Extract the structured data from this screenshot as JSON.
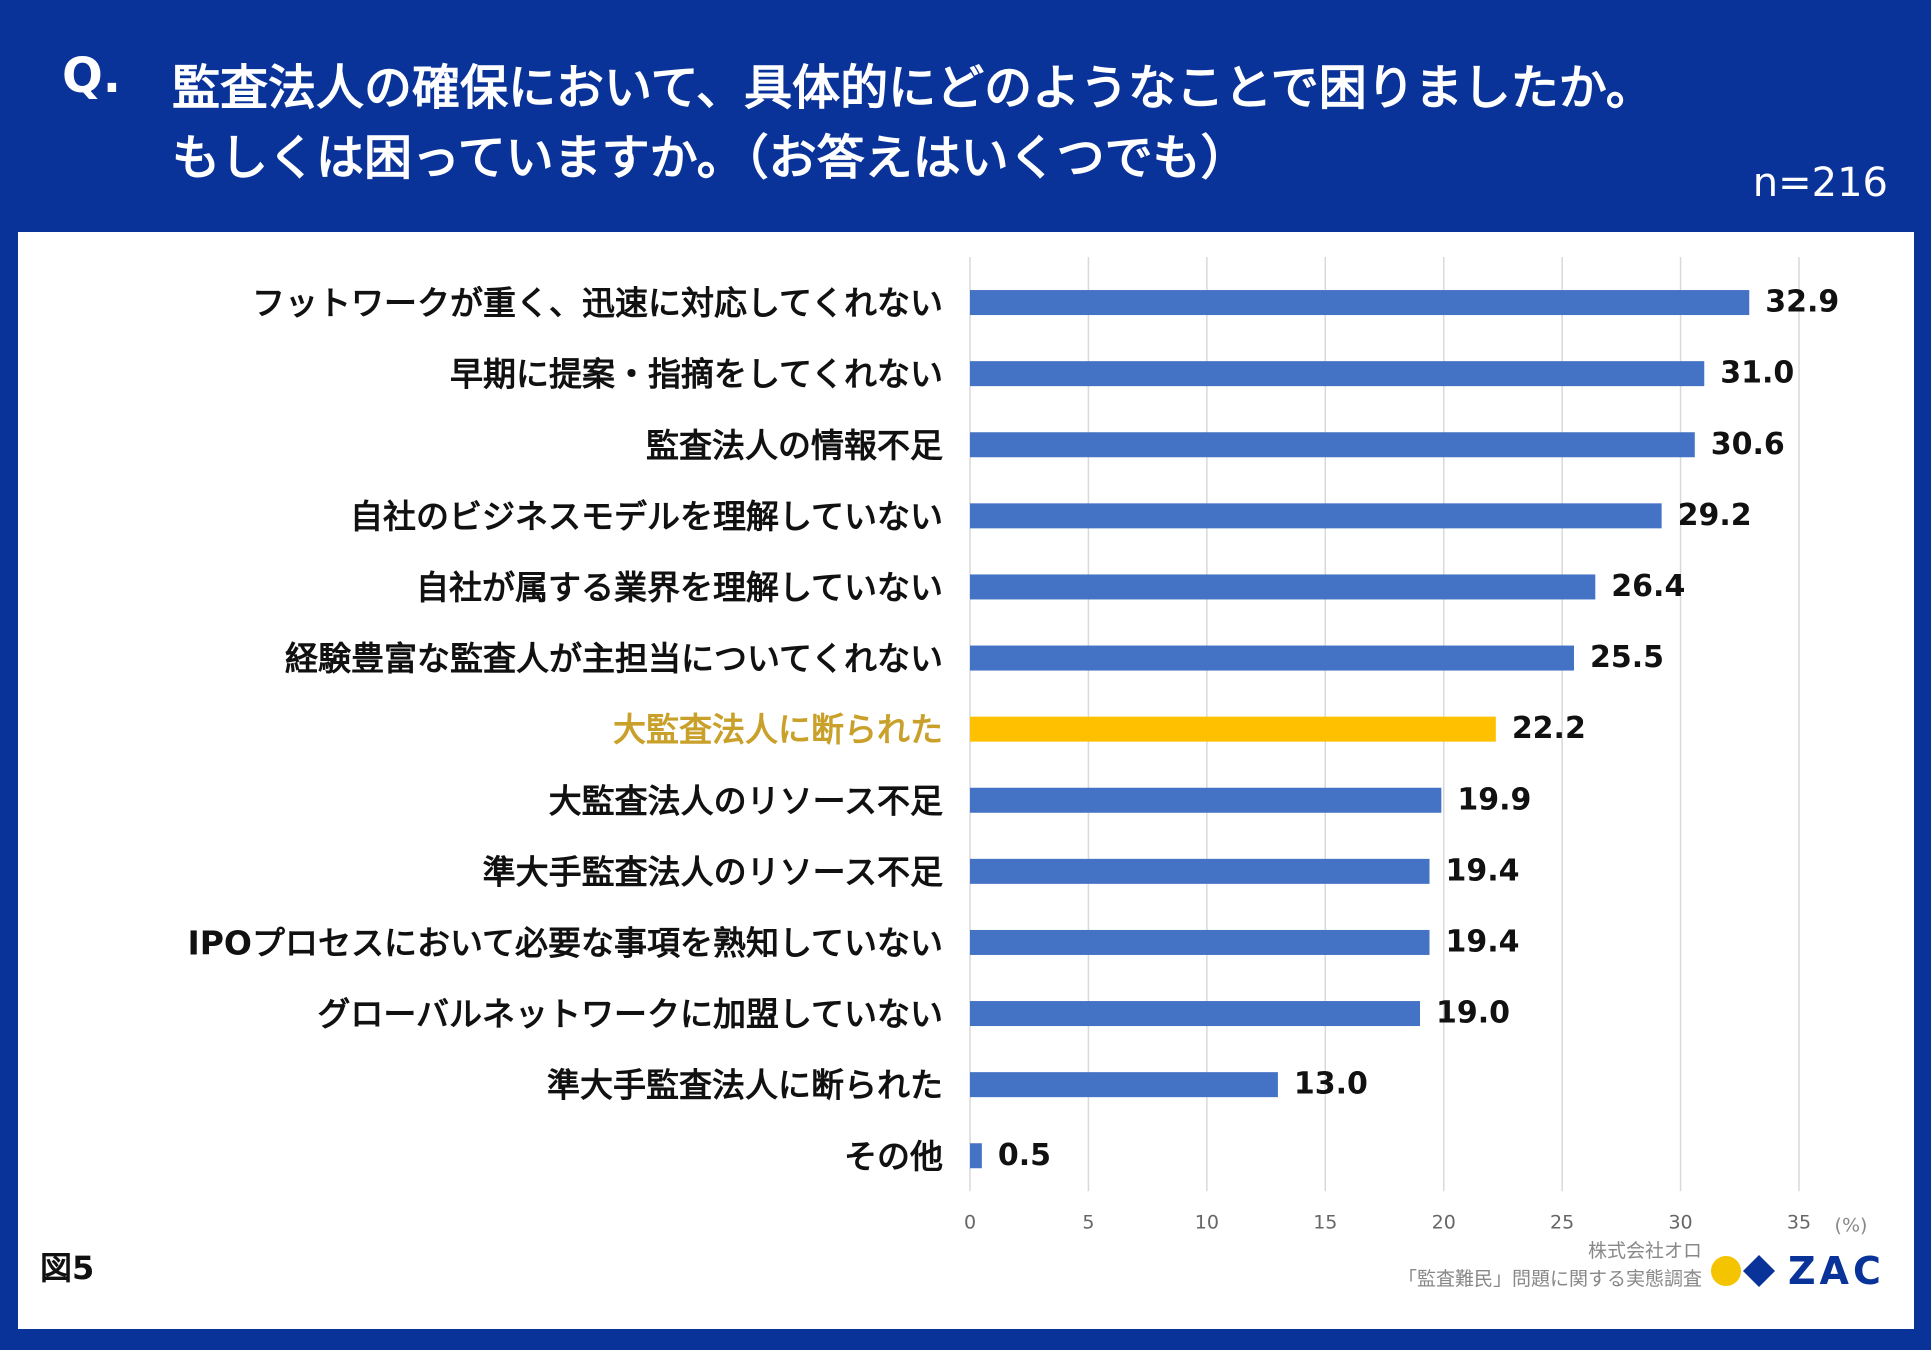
{
  "header": {
    "q_label": "Q.",
    "question_line1": "監査法人の確保において、具体的にどのようなことで困りましたか。",
    "question_line2": "もしくは困っていますか。（お答えはいくつでも）",
    "sample_size": "n=216"
  },
  "figure_label": "図5",
  "credit": {
    "company": "株式会社オロ",
    "survey": "「監査難民」問題に関する実態調査"
  },
  "logo": {
    "text": "ZAC",
    "colors": {
      "dot": "#f5c400",
      "diamond": "#0a3399"
    }
  },
  "chart_data": {
    "type": "bar",
    "orientation": "horizontal",
    "categories": [
      "フットワークが重く、迅速に対応してくれない",
      "早期に提案・指摘をしてくれない",
      "監査法人の情報不足",
      "自社のビジネスモデルを理解していない",
      "自社が属する業界を理解していない",
      "経験豊富な監査人が主担当についてくれない",
      "大監査法人に断られた",
      "大監査法人のリソース不足",
      "準大手監査法人のリソース不足",
      "IPOプロセスにおいて必要な事項を熟知していない",
      "グローバルネットワークに加盟していない",
      "準大手監査法人に断られた",
      "その他"
    ],
    "values": [
      32.9,
      31.0,
      30.6,
      29.2,
      26.4,
      25.5,
      22.2,
      19.9,
      19.4,
      19.4,
      19.0,
      13.0,
      0.5
    ],
    "value_labels": [
      "32.9",
      "31.0",
      "30.6",
      "29.2",
      "26.4",
      "25.5",
      "22.2",
      "19.9",
      "19.4",
      "19.4",
      "19.0",
      "13.0",
      "0.5"
    ],
    "highlight_index": 6,
    "xlim": [
      0,
      35
    ],
    "ticks": [
      0,
      5,
      10,
      15,
      20,
      25,
      30,
      35
    ],
    "tick_labels": [
      "0",
      "5",
      "10",
      "15",
      "20",
      "25",
      "30",
      "35"
    ],
    "unit_label": "(%)",
    "grid": true,
    "colors": {
      "bar": "#4472c4",
      "highlight": "#ffc000",
      "highlight_text": "#c9a02a",
      "label": "#111111",
      "grid": "#d9d9d9",
      "tick": "#666666"
    }
  }
}
